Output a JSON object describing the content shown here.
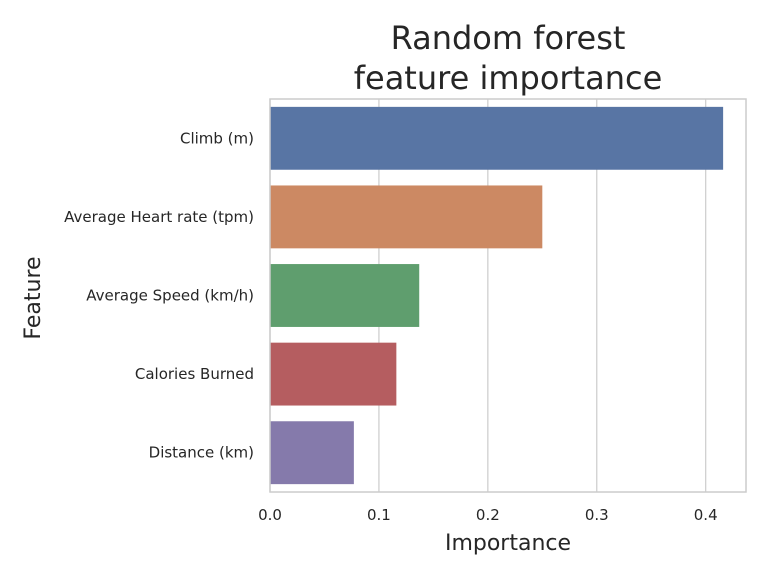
{
  "chart_data": {
    "type": "bar",
    "orientation": "horizontal",
    "title": [
      "Random forest",
      "feature importance"
    ],
    "xlabel": "Importance",
    "ylabel": "Feature",
    "categories": [
      "Climb (m)",
      "Average Heart rate (tpm)",
      "Average Speed (km/h)",
      "Calories Burned",
      "Distance (km)"
    ],
    "values": [
      0.416,
      0.25,
      0.137,
      0.116,
      0.077
    ],
    "colors": [
      "#5875a4",
      "#cc8963",
      "#5f9e6e",
      "#b55d60",
      "#857aab"
    ],
    "xlim": [
      0,
      0.437
    ],
    "xticks": [
      0.0,
      0.1,
      0.2,
      0.3,
      0.4
    ],
    "xtick_labels": [
      "0.0",
      "0.1",
      "0.2",
      "0.3",
      "0.4"
    ],
    "grid": true,
    "grid_axis": "x",
    "style": {
      "grid_color": "#cccccc",
      "spine_color": "#cccccc",
      "text_color": "#262626",
      "background": "#ffffff"
    }
  }
}
